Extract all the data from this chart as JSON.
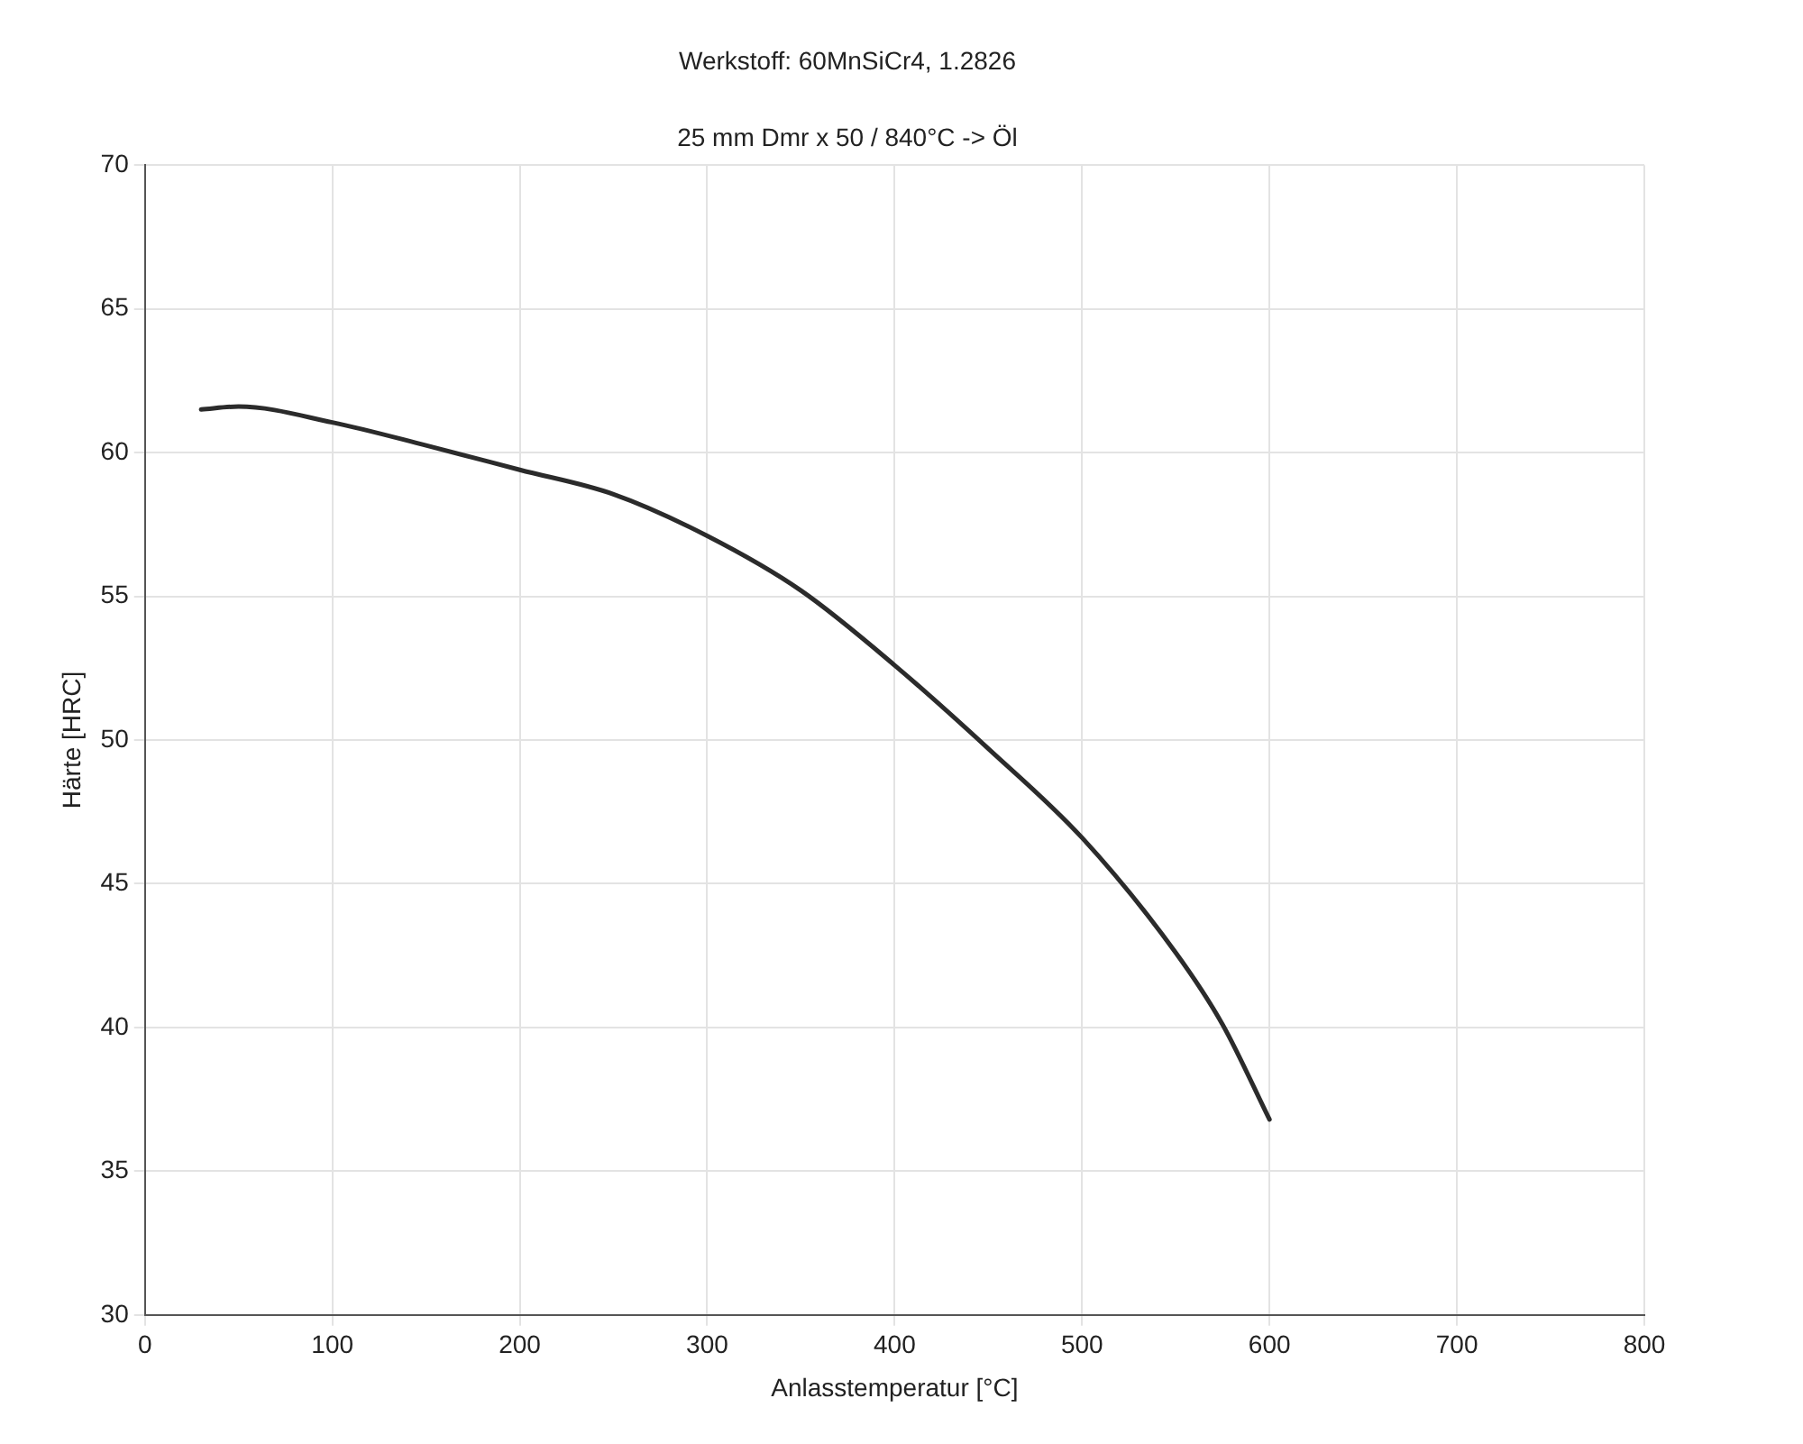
{
  "chart_data": {
    "type": "line",
    "title": "Werkstoff: 60MnSiCr4, 1.2826",
    "subtitle": "25 mm Dmr x 50 / 840°C -> Öl",
    "xlabel": "Anlasstemperatur [°C]",
    "ylabel": "Härte [HRC]",
    "x": [
      30,
      50,
      100,
      150,
      200,
      250,
      300,
      350,
      400,
      450,
      500,
      550,
      575,
      600
    ],
    "series": [
      {
        "color": "#2b2b2b",
        "values": [
          61.5,
          61.6,
          61.05,
          60.25,
          59.4,
          58.55,
          57.1,
          55.2,
          52.6,
          49.7,
          46.6,
          42.6,
          40.1,
          36.8
        ]
      }
    ],
    "xlim": [
      0,
      800
    ],
    "xticks": [
      0,
      100,
      200,
      300,
      400,
      500,
      600,
      700,
      800
    ],
    "ylim": [
      30,
      70
    ],
    "yticks": [
      30,
      35,
      40,
      45,
      50,
      55,
      60,
      65,
      70
    ],
    "grid": true,
    "legend": false,
    "marker": "none",
    "line_style": "solid"
  }
}
